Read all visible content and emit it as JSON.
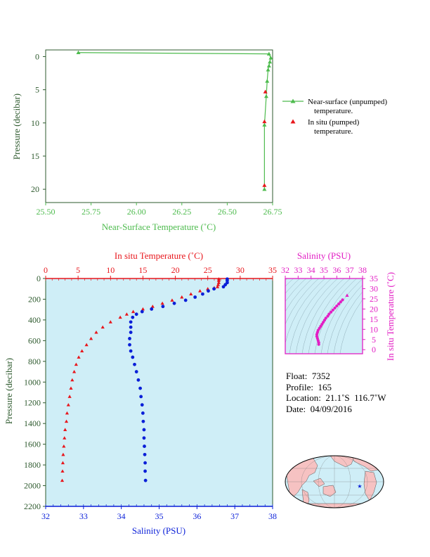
{
  "colors": {
    "near_surface": "#4dbb4d",
    "in_situ_temp": "#e8151b",
    "salinity": "#0a1fd8",
    "ts_magenta": "#e21ec4",
    "dark_green_axis": "#2e5a2e",
    "plot_bg": "#cfeef7",
    "land": "#f6c2c2"
  },
  "charts": {
    "top_label_xlabel": "Near-Surface Temperature (˚C)",
    "top_label_ylabel": "Pressure (decibar)",
    "legend_near_1": "Near-surface (unpumped)",
    "legend_near_2": "temperature.",
    "legend_insitu_1": "In situ (pumped)",
    "legend_insitu_2": "temperature.",
    "main_temp_label": "In situ Temperature (˚C)",
    "main_sal_label": "Salinity (PSU)",
    "main_ylabel": "Pressure (decibar)",
    "ts_sal_label": "Salinity (PSU)",
    "ts_temp_label": "In situ Temperature (˚C)"
  },
  "info": {
    "float": "Float:  7352",
    "profile": "Profile:  165",
    "location": "Location:  21.1˚S  116.7˚W",
    "date": "Date:  04/09/2016"
  },
  "chart_data": [
    {
      "type": "line",
      "xlabel": "Near-Surface Temperature (˚C)",
      "ylabel": "Pressure (decibar)",
      "xlim": [
        25.5,
        26.75
      ],
      "ylim": [
        22,
        -1
      ],
      "xticks": [
        25.5,
        25.75,
        26.0,
        26.25,
        26.5,
        26.75
      ],
      "xtick_labels": [
        "25.50",
        "25.75",
        "26.00",
        "26.25",
        "26.50",
        "26.75"
      ],
      "yticks": [
        0,
        5,
        10,
        15,
        20
      ],
      "series": [
        {
          "name": "Near-surface (unpumped) temperature.",
          "marker": "triangle",
          "points": [
            [
              25.68,
              -0.6
            ],
            [
              26.73,
              -0.4
            ],
            [
              26.74,
              0.2
            ],
            [
              26.735,
              0.8
            ],
            [
              26.73,
              1.4
            ],
            [
              26.725,
              2.0
            ],
            [
              26.72,
              3.7
            ],
            [
              26.715,
              6.0
            ],
            [
              26.705,
              10.3
            ],
            [
              26.705,
              20.0
            ]
          ]
        },
        {
          "name": "In situ (pumped) temperature.",
          "marker": "triangle",
          "points": [
            [
              26.71,
              5.3
            ],
            [
              26.705,
              9.8
            ],
            [
              26.705,
              19.4
            ]
          ]
        }
      ]
    },
    {
      "type": "scatter",
      "ylabel": "Pressure (decibar)",
      "ylim": [
        2200,
        0
      ],
      "yticks": [
        0,
        200,
        400,
        600,
        800,
        1000,
        1200,
        1400,
        1600,
        1800,
        2000,
        2200
      ],
      "temp_axis": {
        "label": "In situ Temperature (˚C)",
        "lim": [
          0,
          35
        ],
        "ticks": [
          0,
          5,
          10,
          15,
          20,
          25,
          30,
          35
        ]
      },
      "sal_axis": {
        "label": "Salinity (PSU)",
        "lim": [
          32,
          38
        ],
        "ticks": [
          32,
          33,
          34,
          35,
          36,
          37,
          38
        ]
      },
      "temperature_profile": {
        "name": "In situ Temperature",
        "points": [
          [
            26.7,
            5
          ],
          [
            26.7,
            20
          ],
          [
            26.7,
            40
          ],
          [
            26.6,
            60
          ],
          [
            26.5,
            80
          ],
          [
            26.0,
            90
          ],
          [
            25.0,
            100
          ],
          [
            23.8,
            120
          ],
          [
            22.4,
            150
          ],
          [
            21.0,
            180
          ],
          [
            19.5,
            210
          ],
          [
            18.0,
            240
          ],
          [
            16.5,
            270
          ],
          [
            15.0,
            295
          ],
          [
            13.5,
            320
          ],
          [
            12.5,
            345
          ],
          [
            11.5,
            375
          ],
          [
            10.0,
            420
          ],
          [
            8.8,
            470
          ],
          [
            7.8,
            520
          ],
          [
            7.0,
            580
          ],
          [
            6.3,
            640
          ],
          [
            5.6,
            700
          ],
          [
            5.1,
            760
          ],
          [
            4.7,
            830
          ],
          [
            4.4,
            900
          ],
          [
            4.1,
            980
          ],
          [
            3.9,
            1060
          ],
          [
            3.7,
            1140
          ],
          [
            3.5,
            1220
          ],
          [
            3.3,
            1300
          ],
          [
            3.2,
            1380
          ],
          [
            3.0,
            1460
          ],
          [
            2.9,
            1540
          ],
          [
            2.8,
            1620
          ],
          [
            2.7,
            1700
          ],
          [
            2.65,
            1780
          ],
          [
            2.6,
            1860
          ],
          [
            2.55,
            1950
          ]
        ]
      },
      "salinity_profile": {
        "name": "Salinity",
        "points": [
          [
            36.8,
            5
          ],
          [
            36.8,
            20
          ],
          [
            36.8,
            40
          ],
          [
            36.75,
            60
          ],
          [
            36.7,
            80
          ],
          [
            36.45,
            100
          ],
          [
            36.3,
            120
          ],
          [
            36.15,
            150
          ],
          [
            35.95,
            180
          ],
          [
            35.7,
            210
          ],
          [
            35.4,
            240
          ],
          [
            35.1,
            270
          ],
          [
            34.8,
            295
          ],
          [
            34.55,
            320
          ],
          [
            34.4,
            345
          ],
          [
            34.3,
            375
          ],
          [
            34.25,
            420
          ],
          [
            34.25,
            470
          ],
          [
            34.25,
            520
          ],
          [
            34.22,
            580
          ],
          [
            34.22,
            640
          ],
          [
            34.25,
            700
          ],
          [
            34.3,
            760
          ],
          [
            34.35,
            830
          ],
          [
            34.4,
            900
          ],
          [
            34.45,
            980
          ],
          [
            34.5,
            1060
          ],
          [
            34.52,
            1140
          ],
          [
            34.55,
            1220
          ],
          [
            34.57,
            1300
          ],
          [
            34.58,
            1380
          ],
          [
            34.6,
            1460
          ],
          [
            34.6,
            1540
          ],
          [
            34.61,
            1620
          ],
          [
            34.62,
            1700
          ],
          [
            34.63,
            1780
          ],
          [
            34.63,
            1860
          ],
          [
            34.64,
            1950
          ]
        ]
      }
    },
    {
      "type": "scatter",
      "xlabel": "Salinity (PSU)",
      "ylabel": "In situ Temperature (˚C)",
      "xlim": [
        32,
        38
      ],
      "ylim": [
        -2,
        35
      ],
      "xticks": [
        32,
        33,
        34,
        35,
        36,
        37,
        38
      ],
      "yticks": [
        0,
        5,
        10,
        15,
        20,
        25,
        30,
        35
      ],
      "points": [
        [
          34.6,
          2.6
        ],
        [
          34.6,
          3.5
        ],
        [
          34.55,
          4.5
        ],
        [
          34.5,
          5.5
        ],
        [
          34.45,
          6.5
        ],
        [
          34.45,
          7.5
        ],
        [
          34.5,
          8.5
        ],
        [
          34.55,
          9.5
        ],
        [
          34.65,
          10.5
        ],
        [
          34.75,
          11.5
        ],
        [
          34.85,
          12.5
        ],
        [
          34.95,
          13.5
        ],
        [
          35.05,
          14.5
        ],
        [
          35.15,
          15.5
        ],
        [
          35.3,
          16.5
        ],
        [
          35.4,
          17.5
        ],
        [
          35.55,
          18.5
        ],
        [
          35.7,
          19.5
        ],
        [
          35.85,
          20.5
        ],
        [
          36.0,
          21.5
        ],
        [
          36.15,
          22.5
        ],
        [
          36.3,
          23.5
        ],
        [
          36.45,
          24.5
        ],
        [
          36.8,
          26.7
        ]
      ]
    }
  ]
}
